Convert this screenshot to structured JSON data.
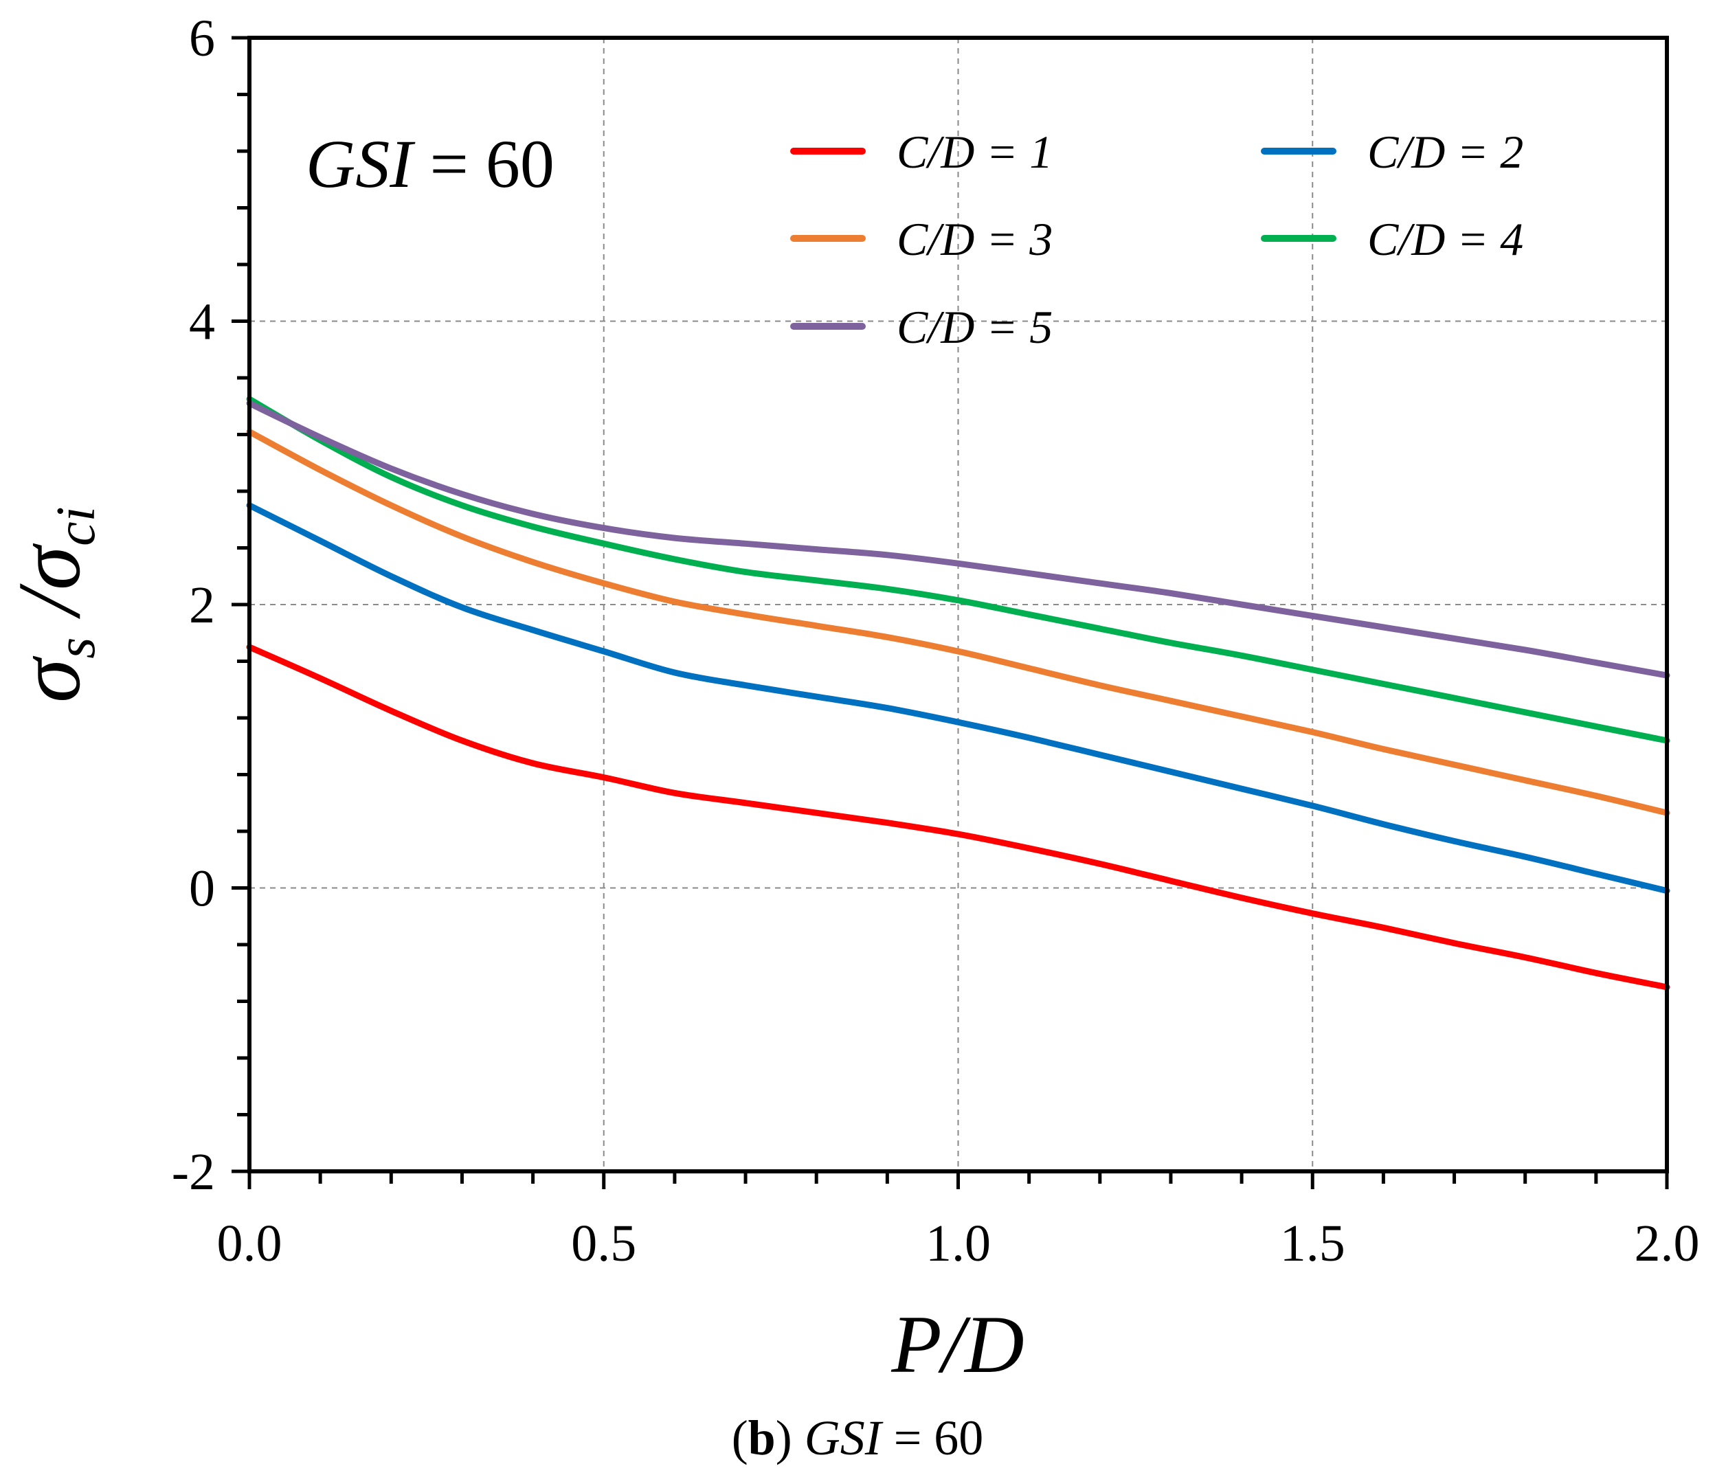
{
  "chart_data": {
    "type": "line",
    "title": "",
    "xlabel": "P/D",
    "ylabel_main": "σ",
    "ylabel_sub1": "s",
    "ylabel_slash": " /",
    "ylabel_main2": "σ",
    "ylabel_sub2": "ci",
    "xlim": [
      0,
      2
    ],
    "ylim": [
      -2,
      6
    ],
    "x_ticks": [
      0.0,
      0.5,
      1.0,
      1.5,
      2.0
    ],
    "x_tick_labels": [
      "0.0",
      "0.5",
      "1.0",
      "1.5",
      "2.0"
    ],
    "y_ticks": [
      -2,
      0,
      2,
      4,
      6
    ],
    "y_tick_labels": [
      "-2",
      "0",
      "2",
      "4",
      "6"
    ],
    "grid": true,
    "legend_position": "top-right",
    "annotation": {
      "prefix": "GSI",
      "value": " = 60"
    },
    "x": [
      0.0,
      0.1,
      0.2,
      0.3,
      0.4,
      0.5,
      0.6,
      0.7,
      0.8,
      0.9,
      1.0,
      1.1,
      1.2,
      1.3,
      1.4,
      1.5,
      1.6,
      1.7,
      1.8,
      1.9,
      2.0
    ],
    "series": [
      {
        "name": "C/D = 1",
        "color": "#ff0000",
        "values": [
          1.7,
          1.48,
          1.25,
          1.04,
          0.88,
          0.78,
          0.67,
          0.6,
          0.53,
          0.46,
          0.38,
          0.28,
          0.17,
          0.05,
          -0.07,
          -0.18,
          -0.28,
          -0.39,
          -0.49,
          -0.6,
          -0.7
        ]
      },
      {
        "name": "C/D = 2",
        "color": "#0070c0",
        "values": [
          2.7,
          2.45,
          2.2,
          1.98,
          1.82,
          1.67,
          1.52,
          1.43,
          1.35,
          1.27,
          1.17,
          1.06,
          0.94,
          0.82,
          0.7,
          0.58,
          0.45,
          0.33,
          0.22,
          0.1,
          -0.02
        ]
      },
      {
        "name": "C/D = 3",
        "color": "#ed7d31",
        "values": [
          3.22,
          2.95,
          2.7,
          2.48,
          2.3,
          2.15,
          2.02,
          1.93,
          1.85,
          1.77,
          1.67,
          1.55,
          1.43,
          1.32,
          1.21,
          1.1,
          0.98,
          0.87,
          0.76,
          0.65,
          0.53
        ]
      },
      {
        "name": "C/D = 4",
        "color": "#00b050",
        "values": [
          3.45,
          3.16,
          2.9,
          2.7,
          2.55,
          2.43,
          2.32,
          2.23,
          2.17,
          2.11,
          2.03,
          1.93,
          1.83,
          1.73,
          1.64,
          1.54,
          1.44,
          1.34,
          1.24,
          1.14,
          1.04
        ]
      },
      {
        "name": "C/D = 5",
        "color": "#7e629e",
        "values": [
          3.42,
          3.18,
          2.96,
          2.78,
          2.64,
          2.54,
          2.47,
          2.43,
          2.39,
          2.35,
          2.29,
          2.22,
          2.15,
          2.08,
          2.0,
          1.92,
          1.84,
          1.76,
          1.68,
          1.59,
          1.5
        ]
      }
    ]
  },
  "caption": {
    "open": "(",
    "letter": "b",
    "close": ") ",
    "name": "GSI",
    "rest": " = 60"
  }
}
